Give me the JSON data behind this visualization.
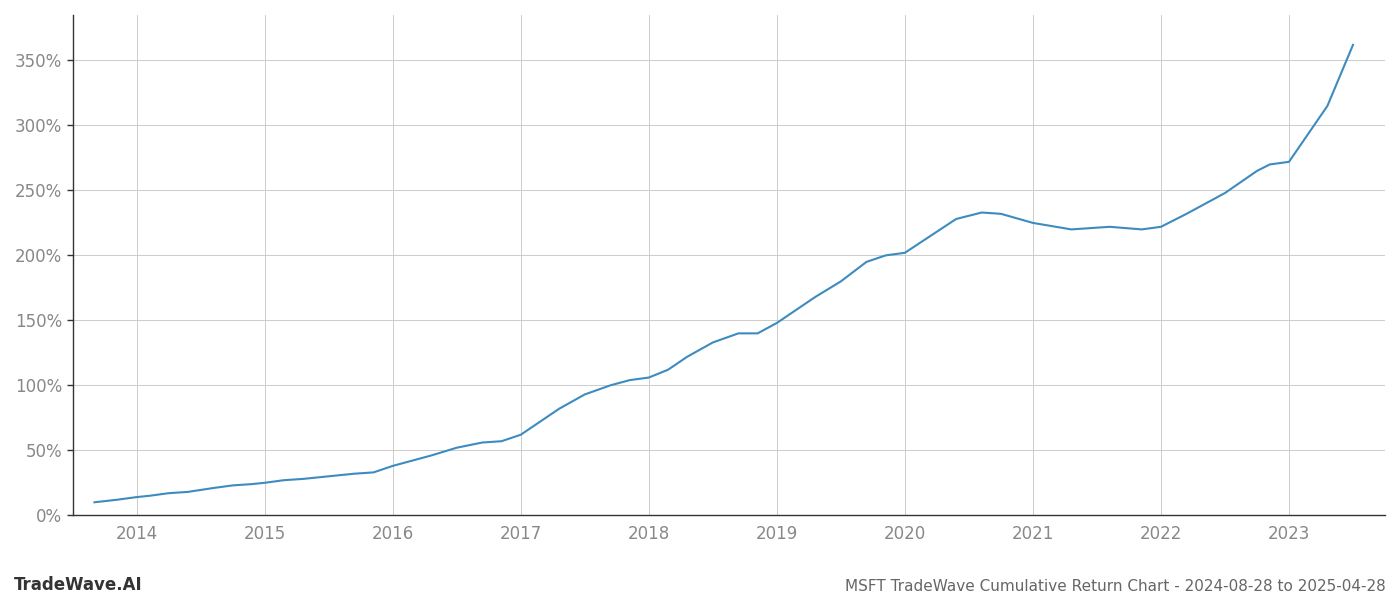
{
  "title": "MSFT TradeWave Cumulative Return Chart - 2024-08-28 to 2025-04-28",
  "watermark": "TradeWave.AI",
  "line_color": "#3d8bbf",
  "background_color": "#ffffff",
  "grid_color": "#cccccc",
  "tick_color": "#888888",
  "title_color": "#666666",
  "watermark_color": "#333333",
  "x_years": [
    2014,
    2015,
    2016,
    2017,
    2018,
    2019,
    2020,
    2021,
    2022,
    2023
  ],
  "x_data": [
    2013.67,
    2013.85,
    2014.0,
    2014.1,
    2014.25,
    2014.4,
    2014.6,
    2014.75,
    2014.9,
    2015.0,
    2015.15,
    2015.3,
    2015.5,
    2015.7,
    2015.85,
    2016.0,
    2016.15,
    2016.3,
    2016.5,
    2016.7,
    2016.85,
    2017.0,
    2017.15,
    2017.3,
    2017.5,
    2017.7,
    2017.85,
    2018.0,
    2018.15,
    2018.3,
    2018.5,
    2018.7,
    2018.85,
    2019.0,
    2019.15,
    2019.3,
    2019.5,
    2019.7,
    2019.85,
    2020.0,
    2020.2,
    2020.4,
    2020.6,
    2020.75,
    2021.0,
    2021.3,
    2021.6,
    2021.85,
    2022.0,
    2022.2,
    2022.5,
    2022.75,
    2022.85,
    2023.0,
    2023.3,
    2023.5
  ],
  "y_data": [
    10,
    12,
    14,
    15,
    17,
    18,
    21,
    23,
    24,
    25,
    27,
    28,
    30,
    32,
    33,
    38,
    42,
    46,
    52,
    56,
    57,
    62,
    72,
    82,
    93,
    100,
    104,
    106,
    112,
    122,
    133,
    140,
    140,
    148,
    158,
    168,
    180,
    195,
    200,
    202,
    215,
    228,
    233,
    232,
    225,
    220,
    222,
    220,
    222,
    232,
    248,
    265,
    270,
    272,
    315,
    362
  ],
  "ylim": [
    0,
    385
  ],
  "yticks": [
    0,
    50,
    100,
    150,
    200,
    250,
    300,
    350
  ],
  "xlim": [
    2013.5,
    2023.75
  ],
  "line_width": 1.5,
  "figsize": [
    14.0,
    6.0
  ],
  "dpi": 100,
  "title_fontsize": 11,
  "tick_fontsize": 12,
  "watermark_fontsize": 12
}
